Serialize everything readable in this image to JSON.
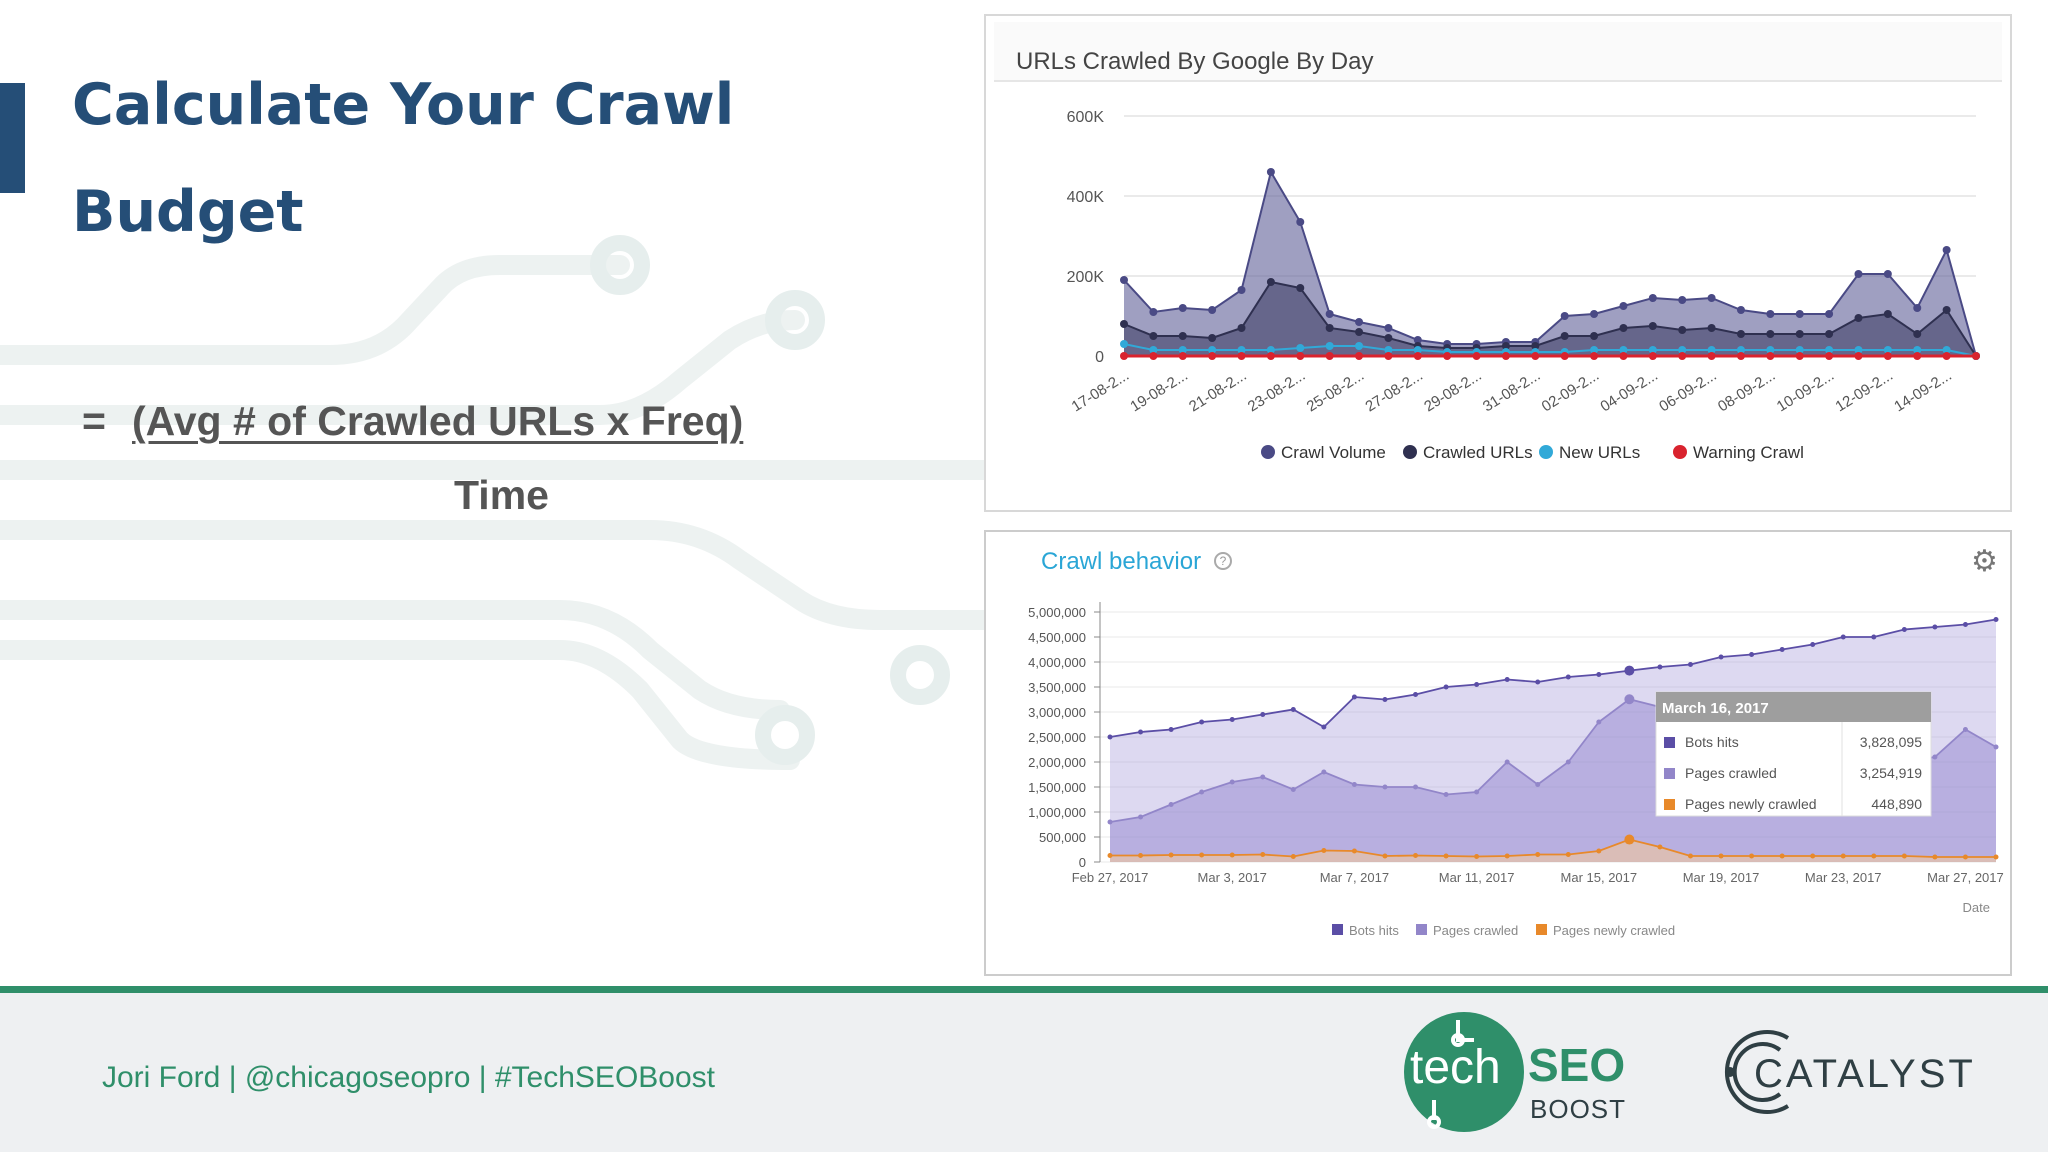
{
  "slide": {
    "title": "Calculate Your Crawl Budget",
    "formula_eq": "=",
    "formula_numerator": "(Avg # of Crawled URLs x Freq)",
    "formula_denominator": "Time"
  },
  "footer": {
    "credit": "Jori Ford  |  @chicagoseopro  |  #TechSEOBoost"
  },
  "logos": {
    "techseo_tech": "tech",
    "techseo_seo": "SEO",
    "techseo_boost": "BOOST",
    "catalyst": "CATALYST"
  },
  "colors": {
    "title": "#254e77",
    "accent_green": "#2f8f6a",
    "crawl_volume": "#4a4a85",
    "crawled_urls": "#2f3050",
    "new_urls": "#31a9d8",
    "warning_crawl": "#d9232e",
    "bots_hits": "#5b4ea6",
    "pages_crawled": "#9286c9",
    "pages_newly_crawled": "#e8892a"
  },
  "chart_data": [
    {
      "type": "area",
      "title": "URLs Crawled By Google By Day",
      "x_tick_labels": [
        "17-08-2...",
        "19-08-2...",
        "21-08-2...",
        "23-08-2...",
        "25-08-2...",
        "27-08-2...",
        "29-08-2...",
        "31-08-2...",
        "02-09-2...",
        "04-09-2...",
        "06-09-2...",
        "08-09-2...",
        "10-09-2...",
        "12-09-2...",
        "14-09-2..."
      ],
      "y_tick_labels": [
        "0",
        "200K",
        "400K",
        "600K"
      ],
      "ylim": [
        0,
        600000
      ],
      "grid": true,
      "legend_position": "bottom",
      "series": [
        {
          "name": "Crawl Volume",
          "values": [
            190000,
            110000,
            120000,
            115000,
            165000,
            460000,
            335000,
            105000,
            85000,
            70000,
            40000,
            30000,
            30000,
            35000,
            35000,
            100000,
            105000,
            125000,
            145000,
            140000,
            145000,
            115000,
            105000,
            105000,
            105000,
            205000,
            205000,
            120000,
            265000,
            0
          ]
        },
        {
          "name": "Crawled URLs",
          "values": [
            80000,
            50000,
            50000,
            45000,
            70000,
            185000,
            170000,
            70000,
            60000,
            45000,
            25000,
            20000,
            20000,
            25000,
            25000,
            50000,
            50000,
            70000,
            75000,
            65000,
            70000,
            55000,
            55000,
            55000,
            55000,
            95000,
            105000,
            55000,
            115000,
            0
          ]
        },
        {
          "name": "New URLs",
          "values": [
            30000,
            15000,
            15000,
            15000,
            15000,
            15000,
            20000,
            25000,
            25000,
            15000,
            15000,
            10000,
            10000,
            10000,
            10000,
            10000,
            15000,
            15000,
            15000,
            15000,
            15000,
            15000,
            15000,
            15000,
            15000,
            15000,
            15000,
            15000,
            15000,
            0
          ]
        },
        {
          "name": "Warning Crawl",
          "values": [
            0,
            0,
            0,
            0,
            0,
            0,
            0,
            0,
            0,
            0,
            0,
            0,
            0,
            0,
            0,
            0,
            0,
            0,
            0,
            0,
            0,
            0,
            0,
            0,
            0,
            0,
            0,
            0,
            0,
            0
          ]
        }
      ]
    },
    {
      "type": "area",
      "title": "Crawl behavior",
      "help_glyph": "?",
      "xlabel": "Date",
      "x_tick_labels": [
        "Feb 27, 2017",
        "Mar 3, 2017",
        "Mar 7, 2017",
        "Mar 11, 2017",
        "Mar 15, 2017",
        "Mar 19, 2017",
        "Mar 23, 2017",
        "Mar 27, 2017"
      ],
      "y_tick_labels": [
        "0",
        "500,000",
        "1,000,000",
        "1,500,000",
        "2,000,000",
        "2,500,000",
        "3,000,000",
        "3,500,000",
        "4,000,000",
        "4,500,000",
        "5,000,000"
      ],
      "ylim": [
        0,
        5000000
      ],
      "grid": true,
      "legend_position": "bottom",
      "series": [
        {
          "name": "Bots hits",
          "values": [
            2500000,
            2600000,
            2650000,
            2800000,
            2850000,
            2950000,
            3050000,
            2700000,
            3300000,
            3250000,
            3350000,
            3500000,
            3550000,
            3650000,
            3600000,
            3700000,
            3750000,
            3828095,
            3900000,
            3950000,
            4100000,
            4150000,
            4250000,
            4350000,
            4500000,
            4500000,
            4650000,
            4700000,
            4750000,
            4850000
          ]
        },
        {
          "name": "Pages crawled",
          "values": [
            800000,
            900000,
            1150000,
            1400000,
            1600000,
            1700000,
            1450000,
            1800000,
            1550000,
            1500000,
            1500000,
            1350000,
            1400000,
            2000000,
            1550000,
            2000000,
            2800000,
            3254919,
            3100000,
            2900000,
            2600000,
            2500000,
            2700000,
            2600000,
            2300000,
            2400000,
            2000000,
            2100000,
            2650000,
            2300000
          ]
        },
        {
          "name": "Pages newly crawled",
          "values": [
            130000,
            130000,
            140000,
            140000,
            140000,
            150000,
            110000,
            230000,
            220000,
            120000,
            130000,
            120000,
            110000,
            120000,
            150000,
            150000,
            220000,
            448890,
            300000,
            120000,
            120000,
            120000,
            120000,
            120000,
            120000,
            120000,
            120000,
            100000,
            100000,
            100000
          ]
        }
      ],
      "tooltip": {
        "date": "March 16, 2017",
        "rows": [
          {
            "label": "Bots hits",
            "value": "3,828,095"
          },
          {
            "label": "Pages crawled",
            "value": "3,254,919"
          },
          {
            "label": "Pages newly crawled",
            "value": "448,890"
          }
        ]
      }
    }
  ]
}
